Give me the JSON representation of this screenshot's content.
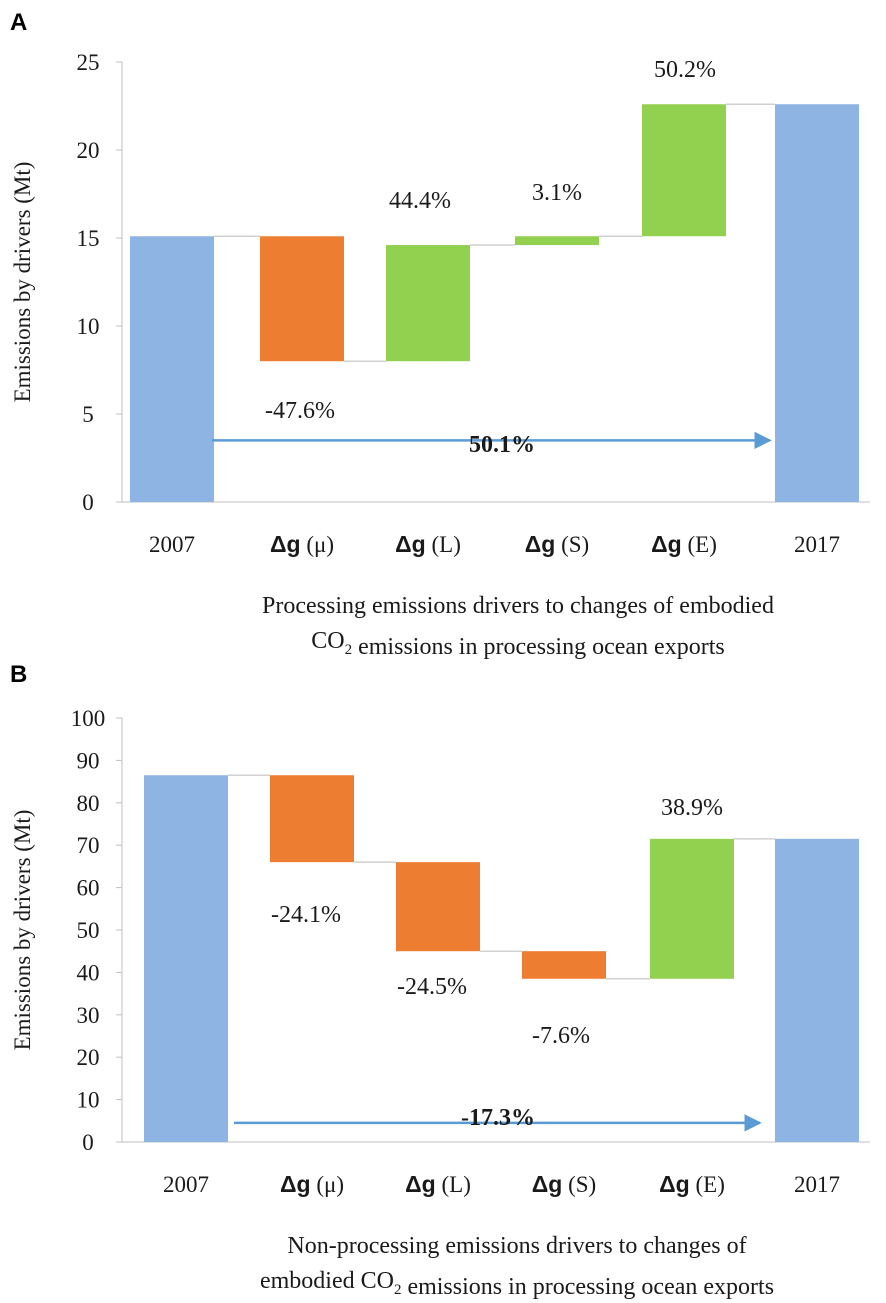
{
  "colors": {
    "base": "#8eb4e3",
    "decrease": "#ed7d31",
    "increase": "#92d050",
    "arrow": "#5b9bd5",
    "axis": "#bfbfbf",
    "connector": "#d0d0d0",
    "text": "#1a1a1a"
  },
  "chart_data": [
    {
      "type": "waterfall",
      "panel_label": "A",
      "ylabel": "Emissions by drivers (Mt)",
      "ylim": [
        0,
        25
      ],
      "yticks": [
        "0",
        "5",
        "10",
        "15",
        "20",
        "25"
      ],
      "tick_values": [
        0,
        5,
        10,
        15,
        20,
        25
      ],
      "categories": [
        {
          "prefix": "",
          "sym": "",
          "suffix": "2007"
        },
        {
          "prefix": "Δ",
          "sym": "g",
          "suffix": " (μ)"
        },
        {
          "prefix": "Δ",
          "sym": "g",
          "suffix": " (L)"
        },
        {
          "prefix": "Δ",
          "sym": "g",
          "suffix": " (S)"
        },
        {
          "prefix": "Δ",
          "sym": "g",
          "suffix": " (E)"
        },
        {
          "prefix": "",
          "sym": "",
          "suffix": "2017"
        }
      ],
      "bars": [
        {
          "kind": "base",
          "start": 0,
          "end": 15.1
        },
        {
          "kind": "decrease",
          "start": 15.1,
          "end": 8.0
        },
        {
          "kind": "increase",
          "start": 8.0,
          "end": 14.6
        },
        {
          "kind": "increase",
          "start": 14.6,
          "end": 15.1
        },
        {
          "kind": "increase",
          "start": 15.1,
          "end": 22.6
        },
        {
          "kind": "base",
          "start": 0,
          "end": 22.6
        }
      ],
      "data_labels": [
        "",
        "-47.6%",
        "44.4%",
        "3.1%",
        "50.2%",
        ""
      ],
      "total_change": {
        "label": "50.1%",
        "value": 3.5
      },
      "title_lines": [
        [
          {
            "t": "Processing emissions drivers to changes of embodied"
          }
        ],
        [
          {
            "t": "CO"
          },
          {
            "t": "2",
            "sub": true
          },
          {
            "t": " emissions in processing ocean exports"
          }
        ]
      ]
    },
    {
      "type": "waterfall",
      "panel_label": "B",
      "ylabel": "Emissions by drivers (Mt)",
      "ylim": [
        0,
        100
      ],
      "yticks": [
        "0",
        "10",
        "20",
        "30",
        "40",
        "50",
        "60",
        "70",
        "80",
        "90",
        "100"
      ],
      "tick_values": [
        0,
        10,
        20,
        30,
        40,
        50,
        60,
        70,
        80,
        90,
        100
      ],
      "categories": [
        {
          "prefix": "",
          "sym": "",
          "suffix": "2007"
        },
        {
          "prefix": "Δ",
          "sym": "g",
          "suffix": " (μ)"
        },
        {
          "prefix": "Δ",
          "sym": "g",
          "suffix": " (L)"
        },
        {
          "prefix": "Δ",
          "sym": "g",
          "suffix": " (S)"
        },
        {
          "prefix": "Δ",
          "sym": "g",
          "suffix": " (E)"
        },
        {
          "prefix": "",
          "sym": "",
          "suffix": "2017"
        }
      ],
      "bars": [
        {
          "kind": "base",
          "start": 0,
          "end": 86.5
        },
        {
          "kind": "decrease",
          "start": 86.5,
          "end": 66.0
        },
        {
          "kind": "decrease",
          "start": 66.0,
          "end": 45.0
        },
        {
          "kind": "decrease",
          "start": 45.0,
          "end": 38.5
        },
        {
          "kind": "increase",
          "start": 38.5,
          "end": 71.5
        },
        {
          "kind": "base",
          "start": 0,
          "end": 71.5
        }
      ],
      "data_labels": [
        "",
        "-24.1%",
        "-24.5%",
        "-7.6%",
        "38.9%",
        ""
      ],
      "total_change": {
        "label": "-17.3%",
        "value": 4.5
      },
      "title_lines": [
        [
          {
            "t": "Non-processing emissions drivers to changes of"
          }
        ],
        [
          {
            "t": "embodied CO"
          },
          {
            "t": "2",
            "sub": true
          },
          {
            "t": " emissions in processing ocean exports"
          }
        ]
      ]
    }
  ]
}
